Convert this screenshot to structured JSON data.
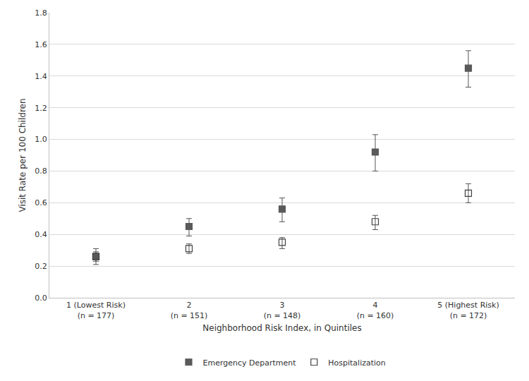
{
  "chart_data": {
    "type": "scatter",
    "x_label": "Neighborhood Risk Index, in Quintiles",
    "y_label": "Visit Rate per 100 Children",
    "categories": [
      "1 (Lowest Risk)\n(n = 177)",
      "2\n(n = 151)",
      "3\n(n = 148)",
      "4\n(n = 160)",
      "5 (Highest Risk)\n(n = 172)"
    ],
    "series": [
      {
        "name": "Emergency Department",
        "color": "#595959",
        "marker": "square",
        "values": [
          0.26,
          0.45,
          0.56,
          0.92,
          1.45
        ],
        "lower": [
          0.21,
          0.39,
          0.48,
          0.8,
          1.33
        ],
        "upper": [
          0.31,
          0.5,
          0.63,
          1.03,
          1.56
        ]
      },
      {
        "name": "Hospitalization",
        "color": "#404040",
        "marker": "square-open",
        "values": [
          0.26,
          0.31,
          0.35,
          0.48,
          0.66
        ],
        "lower": [
          0.23,
          0.28,
          0.31,
          0.43,
          0.6
        ],
        "upper": [
          0.29,
          0.34,
          0.38,
          0.52,
          0.72
        ]
      }
    ],
    "ylim": [
      0,
      1.8
    ],
    "yticks": [
      {
        "value": 0,
        "label": "0.0"
      },
      0.2,
      0.4,
      0.6,
      0.8,
      {
        "value": 1,
        "label": "1.0"
      },
      1.2,
      1.4,
      1.6,
      1.8
    ],
    "grid": true,
    "legend": "bottom"
  }
}
